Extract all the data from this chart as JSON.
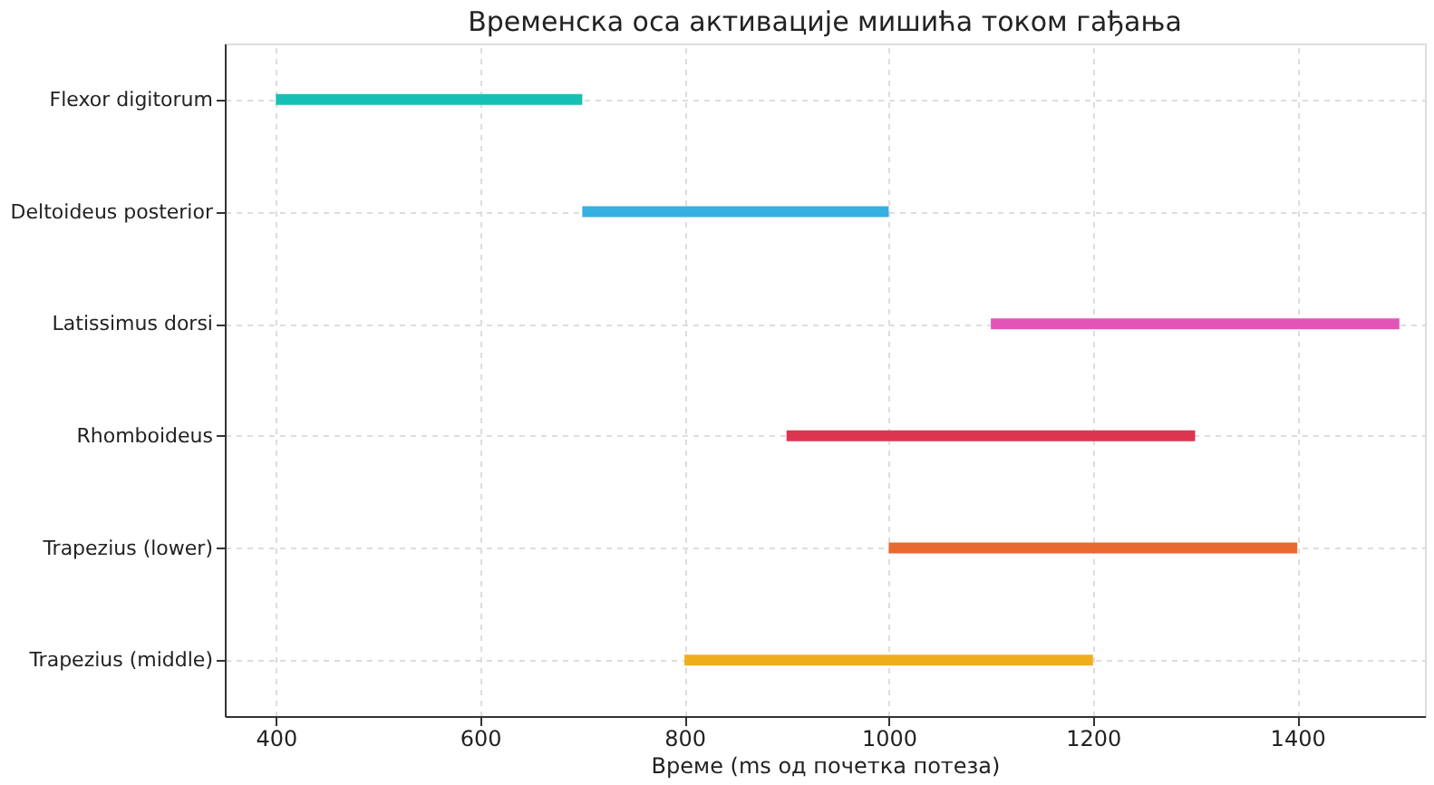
{
  "chart_data": {
    "type": "bar",
    "orientation": "horizontal",
    "title": "Временска оса активације мишића током гађања",
    "xlabel": "Време (ms од почетка потеза)",
    "categories": [
      "Flexor digitorum",
      "Deltoideus posterior",
      "Latissimus dorsi",
      "Rhomboideus",
      "Trapezius (lower)",
      "Trapezius (middle)"
    ],
    "base": [
      400,
      700,
      1100,
      900,
      1000,
      800
    ],
    "values": [
      300,
      300,
      400,
      400,
      400,
      400
    ],
    "colors": [
      "#17bfb4",
      "#35b0e0",
      "#e255b8",
      "#dc3550",
      "#e86a30",
      "#f0ae1e"
    ],
    "xlim": [
      350,
      1525
    ],
    "xticks": [
      400,
      600,
      800,
      1000,
      1200,
      1400
    ],
    "grid": true
  }
}
